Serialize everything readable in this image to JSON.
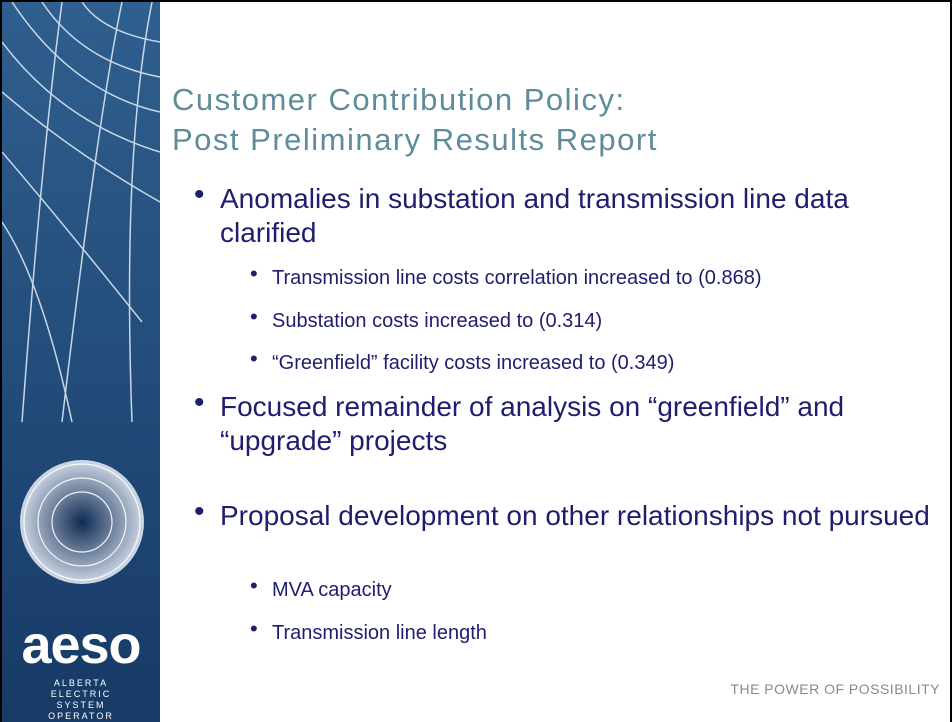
{
  "sidebar": {
    "logo": "aeso",
    "org_lines": [
      "ALBERTA",
      "ELECTRIC",
      "SYSTEM",
      "OPERATOR"
    ]
  },
  "title": [
    "Customer Contribution Policy:",
    "Post Preliminary Results Report"
  ],
  "bullets": [
    {
      "text": "Anomalies in substation and transmission line data clarified",
      "sub": [
        "Transmission line costs correlation increased to (0.868)",
        "Substation costs increased to (0.314)",
        "“Greenfield” facility costs increased to (0.349)"
      ]
    },
    {
      "text": "Focused remainder of analysis on “greenfield” and “upgrade” projects",
      "sub": []
    },
    {
      "text": "Proposal development on other relationships not pursued",
      "sub": [
        "MVA capacity",
        "Transmission line length"
      ]
    }
  ],
  "footer": "THE POWER OF POSSIBILITY"
}
